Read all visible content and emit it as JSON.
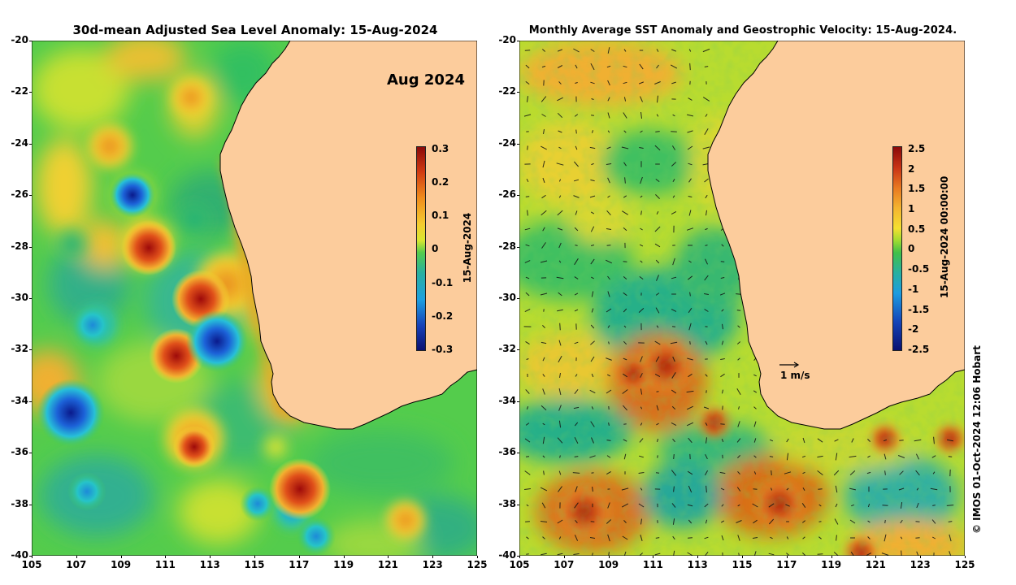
{
  "left_title": "30d-mean Adjusted Sea Level Anomaly: 15-Aug-2024",
  "right_title": "Monthly Average SST Anomaly  and Geostrophic Velocity: 15-Aug-2024.",
  "inset_label": "Aug 2024",
  "y_axis_ticks": [
    "-20",
    "-22",
    "-24",
    "-26",
    "-28",
    "-30",
    "-32",
    "-34",
    "-36",
    "-38",
    "-40"
  ],
  "x_axis_ticks": [
    "105",
    "107",
    "109",
    "111",
    "113",
    "115",
    "117",
    "119",
    "121",
    "123",
    "125"
  ],
  "left_colorbar": {
    "ticks": [
      "0.3",
      "0.2",
      "0.1",
      "0",
      "-0.1",
      "-0.2",
      "-0.3"
    ],
    "label": "15-Aug-2024"
  },
  "right_colorbar": {
    "ticks": [
      "2.5",
      "2",
      "1.5",
      "1",
      "0.5",
      "0",
      "-0.5",
      "-1",
      "-1.5",
      "-2",
      "-2.5"
    ],
    "label": "15-Aug-2024 00:00:00"
  },
  "velocity_scale_label": "1 m/s",
  "copyright": "© IMOS 01-Oct-2024 12:06 Hobart",
  "colors": {
    "land": "#fccc9c",
    "coast": "#000000"
  },
  "map_extent": {
    "lon": [
      105,
      125
    ],
    "lat": [
      -40,
      -20
    ]
  }
}
